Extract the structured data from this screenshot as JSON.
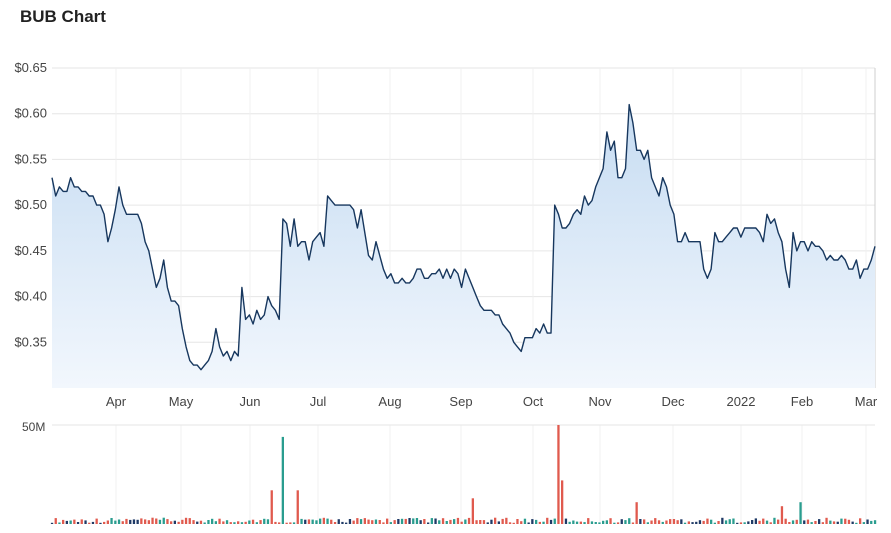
{
  "title": "BUB Chart",
  "chart_data": {
    "type": "line",
    "price_axis": {
      "ylim": [
        0.3,
        0.65
      ],
      "ticks": [
        0.35,
        0.4,
        0.45,
        0.5,
        0.55,
        0.6,
        0.65
      ],
      "tick_labels": [
        "$0.35",
        "$0.40",
        "$0.45",
        "$0.50",
        "$0.55",
        "$0.60",
        "$0.65"
      ]
    },
    "x_labels": [
      "Apr",
      "May",
      "Jun",
      "Jul",
      "Aug",
      "Sep",
      "Oct",
      "Nov",
      "Dec",
      "2022",
      "Feb",
      "Mar"
    ],
    "price": [
      0.53,
      0.51,
      0.52,
      0.515,
      0.515,
      0.53,
      0.52,
      0.52,
      0.515,
      0.515,
      0.51,
      0.51,
      0.5,
      0.5,
      0.49,
      0.46,
      0.475,
      0.495,
      0.52,
      0.5,
      0.49,
      0.49,
      0.49,
      0.49,
      0.48,
      0.46,
      0.45,
      0.43,
      0.41,
      0.42,
      0.44,
      0.41,
      0.395,
      0.395,
      0.39,
      0.365,
      0.345,
      0.33,
      0.325,
      0.325,
      0.32,
      0.325,
      0.33,
      0.34,
      0.365,
      0.345,
      0.335,
      0.34,
      0.33,
      0.34,
      0.335,
      0.41,
      0.375,
      0.38,
      0.37,
      0.385,
      0.375,
      0.38,
      0.4,
      0.39,
      0.385,
      0.375,
      0.485,
      0.48,
      0.455,
      0.485,
      0.455,
      0.46,
      0.46,
      0.44,
      0.46,
      0.465,
      0.47,
      0.455,
      0.51,
      0.505,
      0.5,
      0.5,
      0.5,
      0.5,
      0.5,
      0.495,
      0.475,
      0.495,
      0.47,
      0.445,
      0.44,
      0.46,
      0.445,
      0.43,
      0.42,
      0.425,
      0.415,
      0.415,
      0.42,
      0.415,
      0.415,
      0.42,
      0.43,
      0.43,
      0.42,
      0.42,
      0.425,
      0.425,
      0.43,
      0.42,
      0.43,
      0.42,
      0.43,
      0.425,
      0.41,
      0.43,
      0.42,
      0.41,
      0.4,
      0.39,
      0.385,
      0.385,
      0.385,
      0.38,
      0.38,
      0.37,
      0.365,
      0.36,
      0.35,
      0.345,
      0.34,
      0.355,
      0.355,
      0.355,
      0.365,
      0.36,
      0.37,
      0.36,
      0.36,
      0.5,
      0.49,
      0.475,
      0.475,
      0.48,
      0.49,
      0.495,
      0.49,
      0.51,
      0.5,
      0.505,
      0.52,
      0.53,
      0.54,
      0.58,
      0.56,
      0.57,
      0.53,
      0.53,
      0.54,
      0.61,
      0.59,
      0.56,
      0.56,
      0.55,
      0.56,
      0.53,
      0.52,
      0.51,
      0.53,
      0.52,
      0.5,
      0.49,
      0.46,
      0.46,
      0.47,
      0.46,
      0.46,
      0.46,
      0.46,
      0.43,
      0.42,
      0.43,
      0.47,
      0.46,
      0.46,
      0.465,
      0.47,
      0.475,
      0.475,
      0.465,
      0.475,
      0.475,
      0.475,
      0.475,
      0.47,
      0.46,
      0.49,
      0.48,
      0.485,
      0.47,
      0.46,
      0.43,
      0.41,
      0.47,
      0.45,
      0.46,
      0.46,
      0.45,
      0.46,
      0.455,
      0.455,
      0.45,
      0.44,
      0.445,
      0.44,
      0.44,
      0.445,
      0.44,
      0.43,
      0.43,
      0.44,
      0.42,
      0.43,
      0.43,
      0.44,
      0.455
    ],
    "volume_axis": {
      "label": "50M",
      "max_label_value": 50
    },
    "volume_series": [
      {
        "name": "up",
        "color": "#2a9d8f"
      },
      {
        "name": "down",
        "color": "#e05a4e"
      },
      {
        "name": "flat",
        "color": "#1f3a66"
      }
    ],
    "volume_spikes": [
      {
        "index": 62,
        "value": 44
      },
      {
        "index": 59,
        "value": 17
      },
      {
        "index": 136,
        "value": 50
      },
      {
        "index": 137,
        "value": 22
      },
      {
        "index": 113,
        "value": 13
      },
      {
        "index": 157,
        "value": 11
      },
      {
        "index": 66,
        "value": 17
      },
      {
        "index": 196,
        "value": 9
      },
      {
        "index": 201,
        "value": 11
      }
    ],
    "colors": {
      "line": "#17375e",
      "area_top": "#c6dcf2",
      "area_bottom": "#f2f7fd",
      "grid": "#e6e6e6"
    }
  }
}
